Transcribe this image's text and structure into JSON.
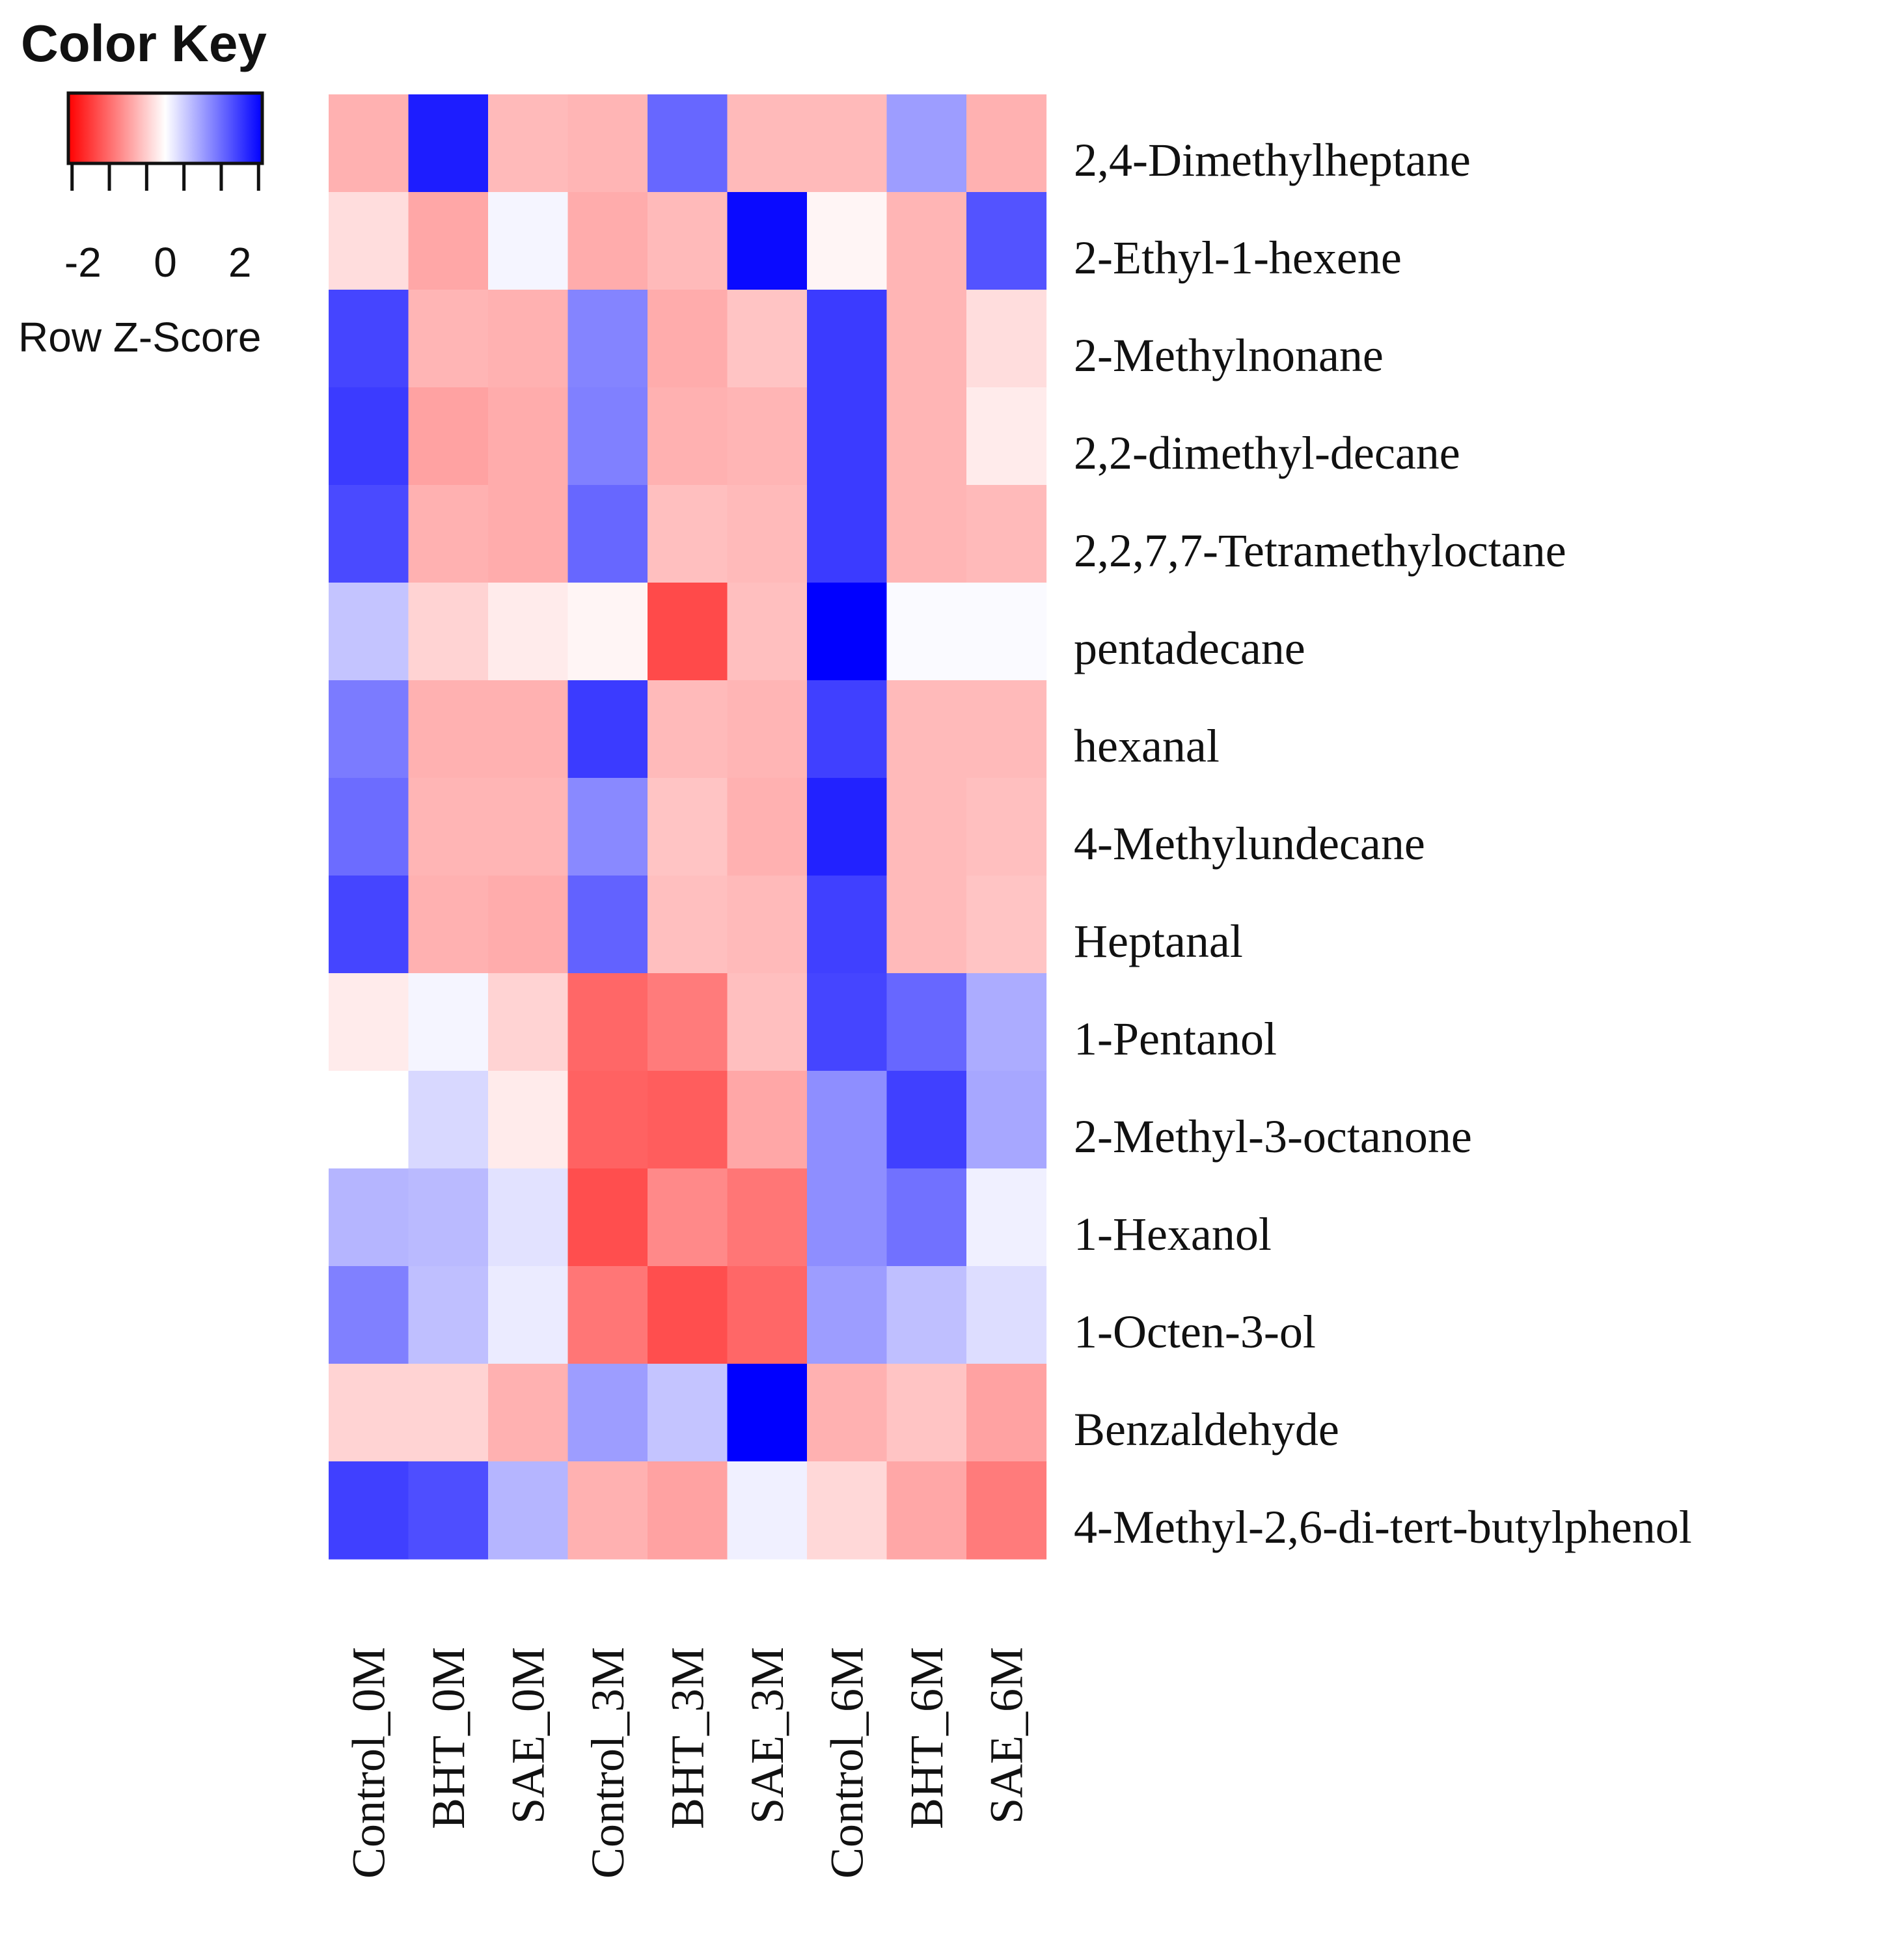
{
  "chart_data": {
    "type": "heatmap",
    "color_key": {
      "title": "Color Key",
      "ticks": [
        -2,
        0,
        2
      ],
      "tick_labels": [
        "-2",
        "0",
        "2"
      ],
      "label": "Row Z-Score",
      "range": [
        -2.6,
        2.6
      ],
      "low_color": "#ff0000",
      "mid_color": "#ffffff",
      "high_color": "#0000ff"
    },
    "columns": [
      "Control_0M",
      "BHT_0M",
      "SAE_0M",
      "Control_3M",
      "BHT_3M",
      "SAE_3M",
      "Control_6M",
      "BHT_6M",
      "SAE_6M"
    ],
    "rows": [
      "2,4-Dimethylheptane",
      "2-Ethyl-1-hexene",
      "2-Methylnonane",
      "2,2-dimethyl-decane",
      "2,2,7,7-Tetramethyloctane",
      "pentadecane",
      "hexanal",
      "4-Methylundecane",
      "Heptanal",
      "1-Pentanol",
      "2-Methyl-3-octanone",
      "1-Hexanol",
      "1-Octen-3-ol",
      "Benzaldehyde",
      "4-Methyl-2,6-di-tert-butylphenol"
    ],
    "values": [
      [
        -0.8,
        2.3,
        -0.7,
        -0.75,
        1.55,
        -0.7,
        -0.7,
        1.0,
        -0.8
      ],
      [
        -0.35,
        -0.9,
        0.1,
        -0.85,
        -0.7,
        2.5,
        -0.1,
        -0.75,
        1.75
      ],
      [
        1.9,
        -0.75,
        -0.8,
        1.25,
        -0.85,
        -0.6,
        2.0,
        -0.75,
        -0.35
      ],
      [
        2.0,
        -0.95,
        -0.85,
        1.3,
        -0.8,
        -0.75,
        2.0,
        -0.75,
        -0.2
      ],
      [
        1.85,
        -0.8,
        -0.85,
        1.55,
        -0.65,
        -0.7,
        2.0,
        -0.75,
        -0.7
      ],
      [
        0.6,
        -0.45,
        -0.2,
        -0.1,
        -1.85,
        -0.65,
        2.6,
        0.05,
        0.05
      ],
      [
        1.35,
        -0.8,
        -0.8,
        2.0,
        -0.7,
        -0.75,
        1.95,
        -0.7,
        -0.7
      ],
      [
        1.5,
        -0.75,
        -0.75,
        1.2,
        -0.6,
        -0.8,
        2.25,
        -0.7,
        -0.65
      ],
      [
        1.9,
        -0.8,
        -0.85,
        1.6,
        -0.65,
        -0.7,
        1.95,
        -0.7,
        -0.6
      ],
      [
        -0.2,
        0.1,
        -0.45,
        -1.55,
        -1.35,
        -0.65,
        1.9,
        1.55,
        0.85
      ],
      [
        0.0,
        0.4,
        -0.2,
        -1.6,
        -1.65,
        -0.9,
        1.15,
        1.95,
        0.9
      ],
      [
        0.75,
        0.7,
        0.3,
        -1.8,
        -1.2,
        -1.4,
        1.15,
        1.45,
        0.15
      ],
      [
        1.3,
        0.65,
        0.2,
        -1.4,
        -1.8,
        -1.55,
        1.0,
        0.65,
        0.35
      ],
      [
        -0.45,
        -0.45,
        -0.8,
        1.0,
        0.6,
        2.6,
        -0.8,
        -0.6,
        -0.95
      ],
      [
        1.95,
        1.8,
        0.75,
        -0.8,
        -0.95,
        0.15,
        -0.4,
        -0.9,
        -1.35
      ]
    ]
  }
}
